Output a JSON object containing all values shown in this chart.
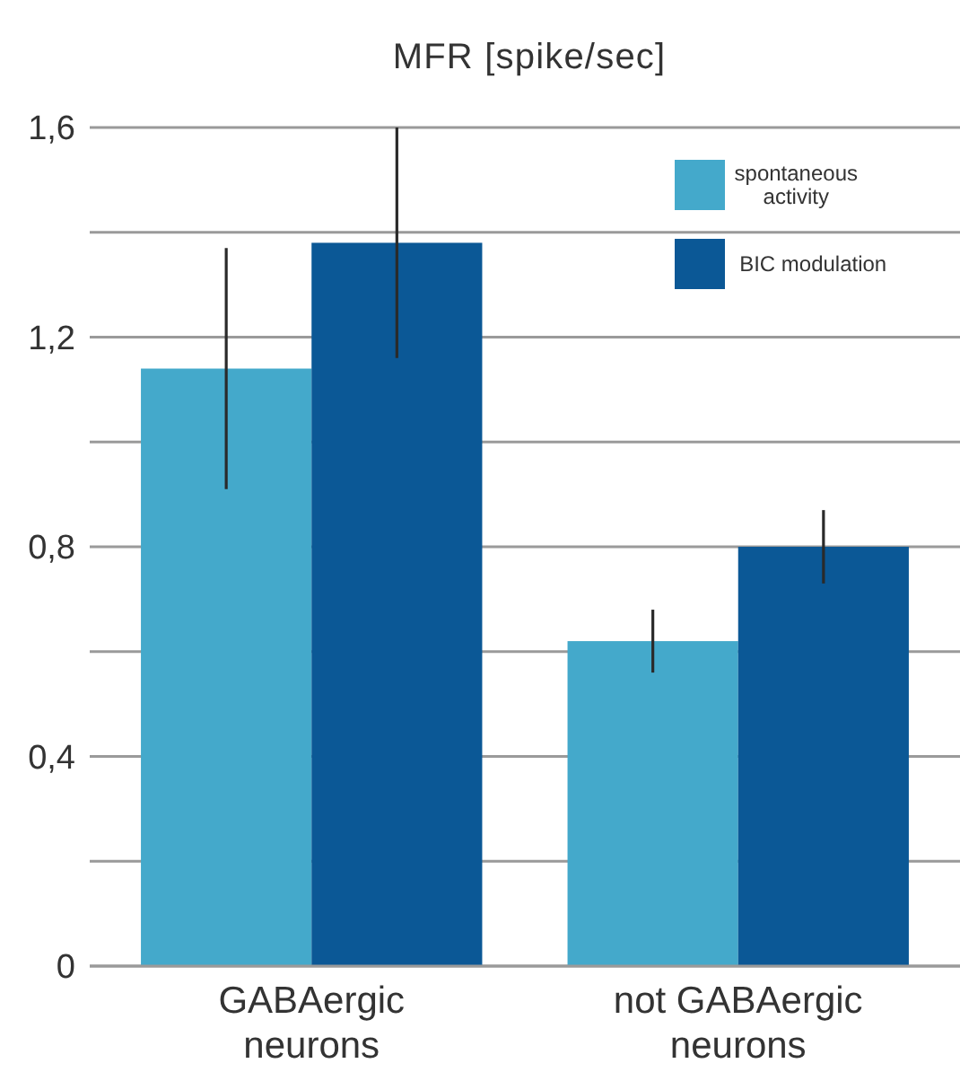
{
  "chart_data": {
    "type": "bar",
    "title": "MFR [spike/sec]",
    "categories": [
      "GABAergic neurons",
      "not GABAergic neurons"
    ],
    "series": [
      {
        "name": "spontaneous activity",
        "color": "#44a9cb",
        "values": [
          1.14,
          0.62
        ],
        "errors": [
          0.23,
          0.06
        ]
      },
      {
        "name": "BIC modulation",
        "color": "#0b5896",
        "values": [
          1.38,
          0.8
        ],
        "errors": [
          0.22,
          0.07
        ]
      }
    ],
    "ylim": [
      0,
      1.6
    ],
    "yticks": [
      0,
      {
        "value": 0.2,
        "label": null
      },
      {
        "value": 0.4,
        "label": "0,4"
      },
      {
        "value": 0.6,
        "label": null
      },
      {
        "value": 0.8,
        "label": "0,8"
      },
      {
        "value": 1.0,
        "label": null
      },
      {
        "value": 1.2,
        "label": "1,2"
      },
      {
        "value": 1.4,
        "label": null
      },
      {
        "value": 1.6,
        "label": "1,6"
      }
    ],
    "grid": "y",
    "legend": "top right"
  }
}
